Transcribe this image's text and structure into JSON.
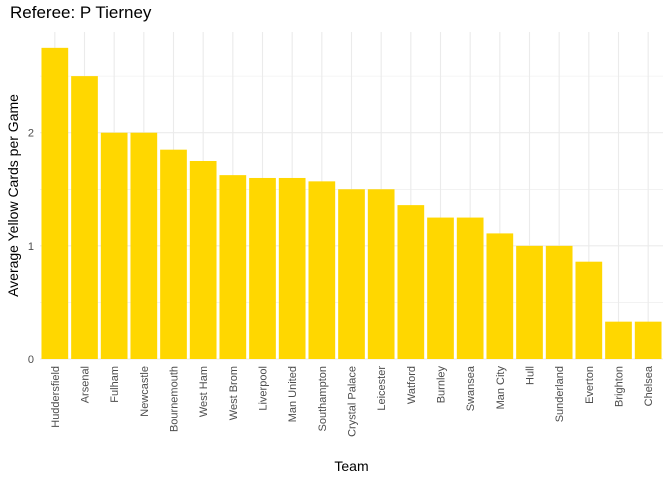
{
  "chart_data": {
    "type": "bar",
    "title": "Referee: P Tierney",
    "xlabel": "Team",
    "ylabel": "Average Yellow Cards per Game",
    "categories": [
      "Huddersfield",
      "Arsenal",
      "Fulham",
      "Newcastle",
      "Bournemouth",
      "West Ham",
      "West Brom",
      "Liverpool",
      "Man United",
      "Southampton",
      "Crystal Palace",
      "Leicester",
      "Watford",
      "Burnley",
      "Swansea",
      "Man City",
      "Hull",
      "Sunderland",
      "Everton",
      "Brighton",
      "Chelsea"
    ],
    "values": [
      2.75,
      2.5,
      2.0,
      2.0,
      1.85,
      1.75,
      1.625,
      1.6,
      1.6,
      1.57,
      1.5,
      1.5,
      1.36,
      1.25,
      1.25,
      1.11,
      1.0,
      1.0,
      0.86,
      0.33,
      0.33
    ],
    "yticks": [
      0,
      1,
      2
    ],
    "ylim": [
      0,
      2.89
    ],
    "grid": true,
    "bar_color": "#FFD700",
    "grid_color": "#ebebeb"
  }
}
